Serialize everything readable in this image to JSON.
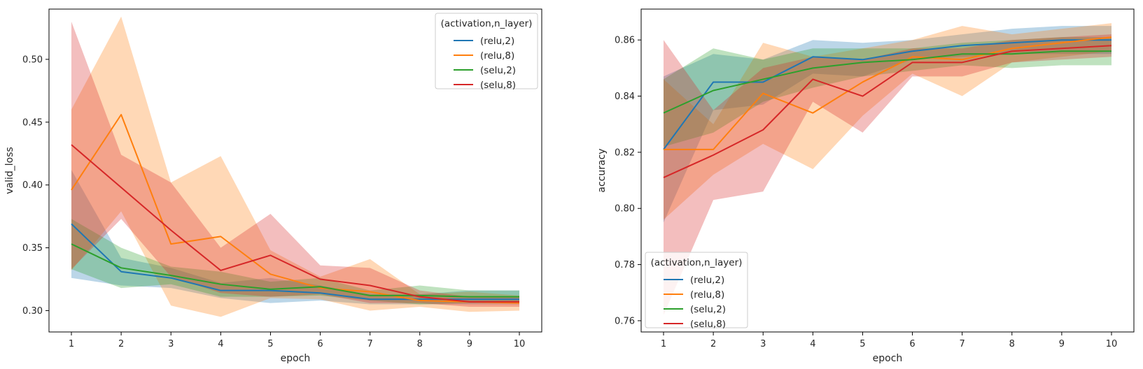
{
  "chart_data": [
    {
      "type": "line",
      "xlabel": "epoch",
      "ylabel": "valid_loss",
      "xlim": [
        0.55,
        10.45
      ],
      "ylim": [
        0.283,
        0.54
      ],
      "xticks": [
        "1",
        "2",
        "3",
        "4",
        "5",
        "6",
        "7",
        "8",
        "9",
        "10"
      ],
      "yticks": [
        "0.30",
        "0.35",
        "0.40",
        "0.45",
        "0.50"
      ],
      "ytick_values": [
        0.3,
        0.35,
        0.4,
        0.45,
        0.5
      ],
      "legend": {
        "title": "(activation,n_layer)",
        "position": "top-right"
      },
      "x": [
        1,
        2,
        3,
        4,
        5,
        6,
        7,
        8,
        9,
        10
      ],
      "series": [
        {
          "name": "(relu,2)",
          "color": "#1f77b4",
          "values": [
            0.369,
            0.331,
            0.326,
            0.316,
            0.316,
            0.314,
            0.309,
            0.309,
            0.309,
            0.309
          ],
          "lower": [
            0.326,
            0.32,
            0.318,
            0.31,
            0.306,
            0.308,
            0.305,
            0.305,
            0.305,
            0.305
          ],
          "upper": [
            0.412,
            0.342,
            0.334,
            0.322,
            0.326,
            0.32,
            0.313,
            0.313,
            0.316,
            0.316
          ]
        },
        {
          "name": "(relu,8)",
          "color": "#ff7f0e",
          "values": [
            0.396,
            0.456,
            0.353,
            0.359,
            0.329,
            0.318,
            0.315,
            0.308,
            0.307,
            0.306
          ],
          "lower": [
            0.332,
            0.379,
            0.304,
            0.295,
            0.31,
            0.309,
            0.3,
            0.303,
            0.299,
            0.3
          ],
          "upper": [
            0.46,
            0.534,
            0.402,
            0.423,
            0.348,
            0.327,
            0.341,
            0.313,
            0.315,
            0.312
          ]
        },
        {
          "name": "(selu,2)",
          "color": "#2ca02c",
          "values": [
            0.353,
            0.334,
            0.328,
            0.321,
            0.317,
            0.319,
            0.312,
            0.312,
            0.311,
            0.311
          ],
          "lower": [
            0.333,
            0.318,
            0.321,
            0.311,
            0.311,
            0.312,
            0.308,
            0.305,
            0.306,
            0.306
          ],
          "upper": [
            0.373,
            0.35,
            0.335,
            0.331,
            0.323,
            0.326,
            0.316,
            0.32,
            0.316,
            0.316
          ]
        },
        {
          "name": "(selu,8)",
          "color": "#d62728",
          "values": [
            0.432,
            0.398,
            0.364,
            0.332,
            0.344,
            0.325,
            0.32,
            0.311,
            0.307,
            0.307
          ],
          "lower": [
            0.333,
            0.373,
            0.327,
            0.314,
            0.311,
            0.313,
            0.306,
            0.306,
            0.303,
            0.303
          ],
          "upper": [
            0.53,
            0.424,
            0.402,
            0.35,
            0.377,
            0.336,
            0.334,
            0.316,
            0.311,
            0.311
          ]
        }
      ]
    },
    {
      "type": "line",
      "xlabel": "epoch",
      "ylabel": "accuracy",
      "xlim": [
        0.55,
        10.45
      ],
      "ylim": [
        0.756,
        0.871
      ],
      "xticks": [
        "1",
        "2",
        "3",
        "4",
        "5",
        "6",
        "7",
        "8",
        "9",
        "10"
      ],
      "yticks": [
        "0.76",
        "0.78",
        "0.80",
        "0.82",
        "0.84",
        "0.86"
      ],
      "ytick_values": [
        0.76,
        0.78,
        0.8,
        0.82,
        0.84,
        0.86
      ],
      "legend": {
        "title": "(activation,n_layer)",
        "position": "bottom-left"
      },
      "x": [
        1,
        2,
        3,
        4,
        5,
        6,
        7,
        8,
        9,
        10
      ],
      "series": [
        {
          "name": "(relu,2)",
          "color": "#1f77b4",
          "values": [
            0.821,
            0.845,
            0.845,
            0.854,
            0.853,
            0.856,
            0.858,
            0.859,
            0.86,
            0.86
          ],
          "lower": [
            0.795,
            0.835,
            0.837,
            0.848,
            0.847,
            0.853,
            0.854,
            0.855,
            0.855,
            0.855
          ],
          "upper": [
            0.847,
            0.855,
            0.853,
            0.86,
            0.859,
            0.86,
            0.862,
            0.864,
            0.865,
            0.865
          ]
        },
        {
          "name": "(relu,8)",
          "color": "#ff7f0e",
          "values": [
            0.821,
            0.821,
            0.841,
            0.834,
            0.845,
            0.854,
            0.853,
            0.857,
            0.859,
            0.861
          ],
          "lower": [
            0.796,
            0.812,
            0.823,
            0.814,
            0.833,
            0.848,
            0.84,
            0.852,
            0.854,
            0.856
          ],
          "upper": [
            0.846,
            0.83,
            0.859,
            0.854,
            0.857,
            0.86,
            0.865,
            0.862,
            0.864,
            0.866
          ]
        },
        {
          "name": "(selu,2)",
          "color": "#2ca02c",
          "values": [
            0.834,
            0.842,
            0.846,
            0.85,
            0.852,
            0.853,
            0.855,
            0.855,
            0.856,
            0.856
          ],
          "lower": [
            0.822,
            0.827,
            0.838,
            0.843,
            0.847,
            0.849,
            0.851,
            0.85,
            0.851,
            0.851
          ],
          "upper": [
            0.846,
            0.857,
            0.853,
            0.857,
            0.857,
            0.857,
            0.859,
            0.86,
            0.861,
            0.861
          ]
        },
        {
          "name": "(selu,8)",
          "color": "#d62728",
          "values": [
            0.811,
            0.819,
            0.828,
            0.846,
            0.84,
            0.852,
            0.852,
            0.856,
            0.857,
            0.858
          ],
          "lower": [
            0.762,
            0.803,
            0.806,
            0.838,
            0.827,
            0.847,
            0.847,
            0.852,
            0.853,
            0.854
          ],
          "upper": [
            0.86,
            0.835,
            0.85,
            0.854,
            0.853,
            0.857,
            0.857,
            0.86,
            0.861,
            0.862
          ]
        }
      ]
    }
  ]
}
